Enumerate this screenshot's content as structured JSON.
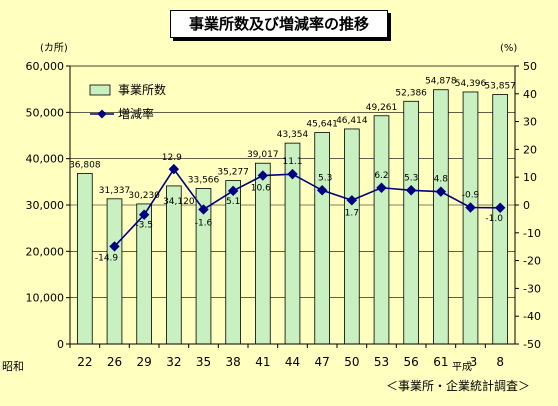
{
  "chart_data": {
    "type": "bar+line",
    "title": "事業所数及び増減率の推移",
    "source": "＜事業所・企業統計調査＞",
    "era_labels": {
      "showa": "昭和",
      "heisei": "平成"
    },
    "categories": [
      "22",
      "26",
      "29",
      "32",
      "35",
      "38",
      "41",
      "44",
      "47",
      "50",
      "53",
      "56",
      "61",
      "3",
      "8"
    ],
    "y_left": {
      "unit": "(カ所)",
      "min": 0,
      "max": 60000,
      "step": 10000,
      "tick_labels": [
        "0",
        "10,000",
        "20,000",
        "30,000",
        "40,000",
        "50,000",
        "60,000"
      ]
    },
    "y_right": {
      "unit": "(%)",
      "min": -50,
      "max": 50,
      "step": 10,
      "tick_labels": [
        "-50",
        "-40",
        "-30",
        "-20",
        "-10",
        "0",
        "10",
        "20",
        "30",
        "40",
        "50"
      ]
    },
    "legend": {
      "position": "top-left"
    },
    "series": [
      {
        "name": "事業所数",
        "type": "bar",
        "axis": "left",
        "color": "#c8f0c0",
        "values": [
          36808,
          31337,
          30230,
          34120,
          33566,
          35277,
          39017,
          43354,
          45641,
          46414,
          49261,
          52386,
          54878,
          54396,
          53857
        ],
        "labels": [
          "36,808",
          "31,337",
          "30,230",
          "34,120",
          "33,566",
          "35,277",
          "39,017",
          "43,354",
          "45,641",
          "46,414",
          "49,261",
          "52,386",
          "54,878",
          "54,396",
          "53,857"
        ]
      },
      {
        "name": "増減率",
        "type": "line",
        "axis": "right",
        "color": "#000080",
        "values": [
          null,
          -14.9,
          -3.5,
          12.9,
          -1.6,
          5.1,
          10.6,
          11.1,
          5.3,
          1.7,
          6.2,
          5.3,
          4.8,
          -0.9,
          -1.0
        ],
        "labels": [
          null,
          "-14.9",
          "-3.5",
          "12.9",
          "-1.6",
          "5.1",
          "10.6",
          "11.1",
          "5.3",
          "1.7",
          "6.2",
          "5.3",
          "4.8",
          "-0.9",
          "-1.0"
        ]
      }
    ]
  }
}
